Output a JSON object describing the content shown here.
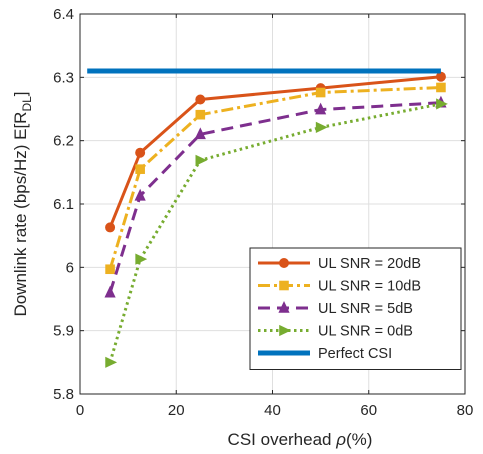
{
  "chart_data": {
    "type": "line",
    "xlabel": "CSI overhead ρ(%)",
    "ylabel": "Downlink rate (bps/Hz) E[R_DL]",
    "xlim": [
      0,
      80
    ],
    "ylim": [
      5.8,
      6.4
    ],
    "xticks": [
      0,
      20,
      40,
      60,
      80
    ],
    "yticks": [
      5.8,
      5.9,
      6.0,
      6.1,
      6.2,
      6.3,
      6.4
    ],
    "grid": true,
    "legend_position": "bottom-right",
    "series": [
      {
        "name": "UL SNR = 20dB",
        "color": "#d95319",
        "style": "solid",
        "marker": "circle",
        "x": [
          6.25,
          12.5,
          25,
          50,
          75
        ],
        "y": [
          6.063,
          6.181,
          6.265,
          6.283,
          6.301
        ]
      },
      {
        "name": "UL SNR = 10dB",
        "color": "#edb120",
        "style": "dashdot",
        "marker": "square",
        "x": [
          6.25,
          12.5,
          25,
          50,
          75
        ],
        "y": [
          5.997,
          6.155,
          6.241,
          6.276,
          6.284
        ]
      },
      {
        "name": "UL SNR = 5dB",
        "color": "#7e2f8e",
        "style": "dashed",
        "marker": "triangle-up",
        "x": [
          6.25,
          12.5,
          25,
          50,
          75
        ],
        "y": [
          5.96,
          6.113,
          6.21,
          6.249,
          6.26
        ]
      },
      {
        "name": "UL SNR = 0dB",
        "color": "#77ac30",
        "style": "dotted",
        "marker": "triangle-right",
        "x": [
          6.25,
          12.5,
          25,
          50,
          75
        ],
        "y": [
          5.85,
          6.013,
          6.169,
          6.221,
          6.258
        ]
      },
      {
        "name": "Perfect CSI",
        "color": "#0072bd",
        "style": "solid",
        "marker": "none",
        "x": [
          1.5,
          75
        ],
        "y": [
          6.31,
          6.31
        ]
      }
    ]
  }
}
